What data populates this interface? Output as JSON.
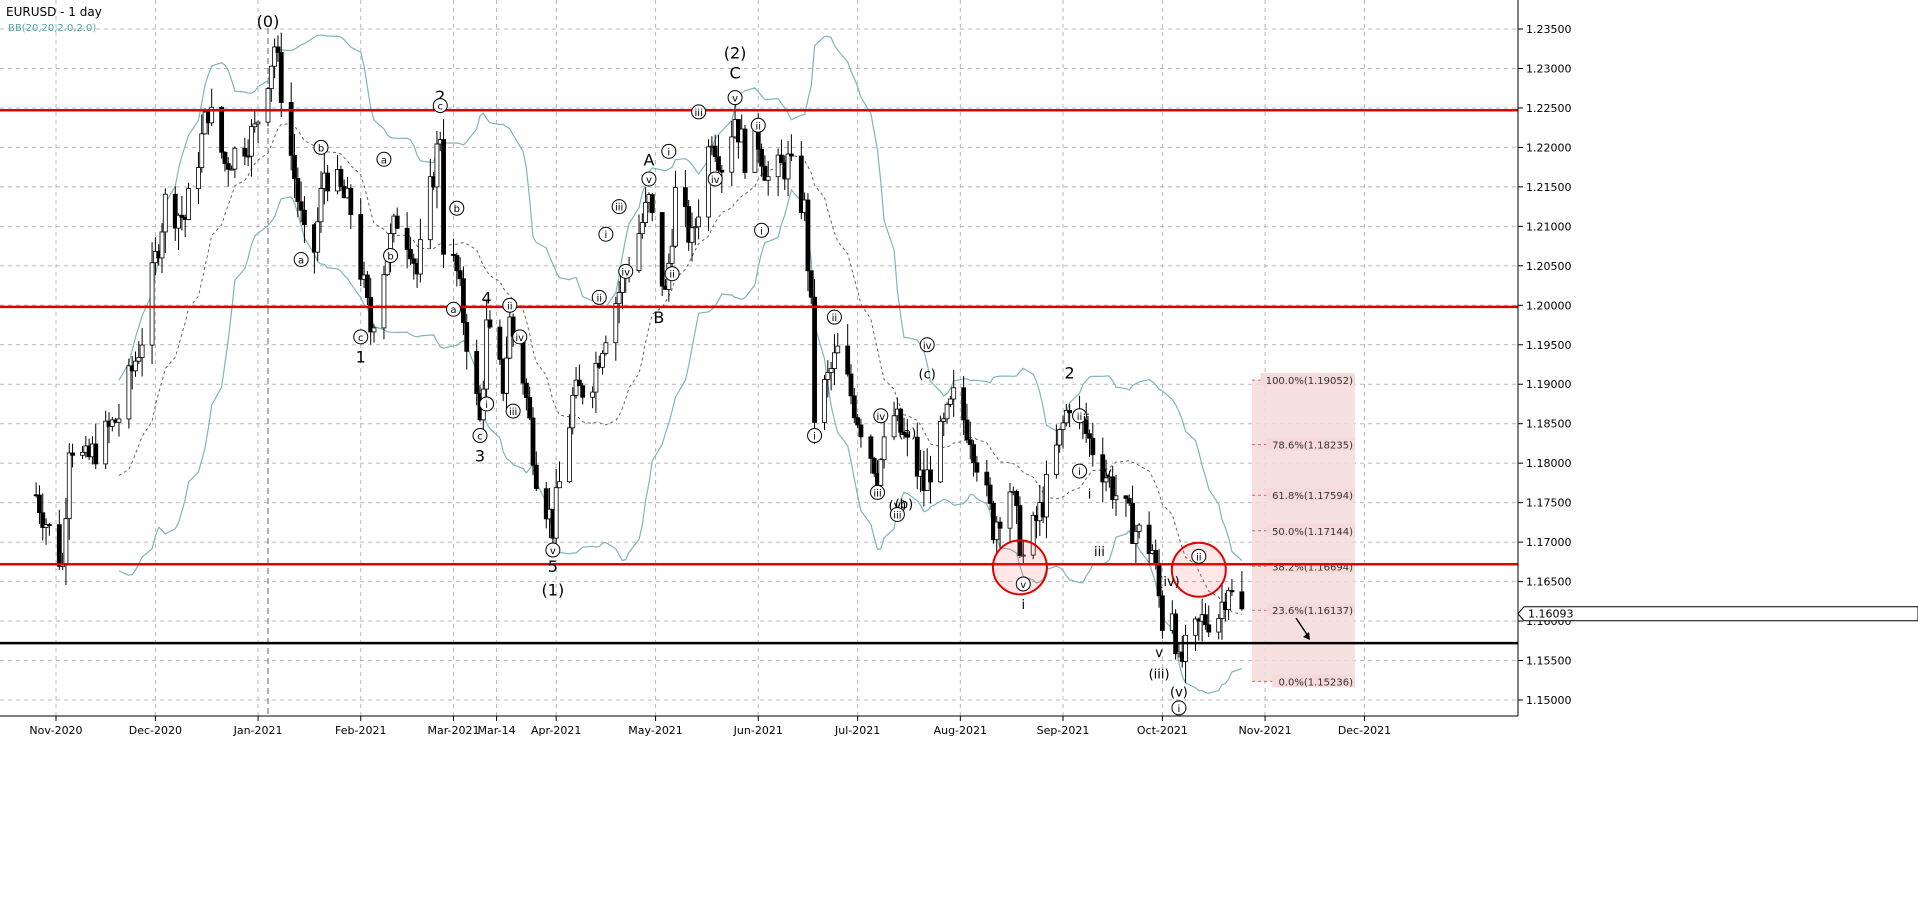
{
  "chart_data": {
    "type": "candlestick",
    "title": "EURUSD - 1 day",
    "indicator": "BB(20,20,2.0,2.0)",
    "current_price": "1.16093",
    "ylim": [
      1.1475,
      1.2385
    ],
    "y_ticks": [
      "1.15000",
      "1.15500",
      "1.16000",
      "1.16500",
      "1.17000",
      "1.17500",
      "1.18000",
      "1.18500",
      "1.19000",
      "1.19500",
      "1.20000",
      "1.20500",
      "1.21000",
      "1.21500",
      "1.22000",
      "1.22500",
      "1.23000",
      "1.23500"
    ],
    "x_ticks": [
      "Nov-2020",
      "Dec-2020",
      "Jan-2021",
      "Feb-2021",
      "Mar-2021",
      "Mar-14",
      "Apr-2021",
      "May-2021",
      "Jun-2021",
      "Jul-2021",
      "Aug-2021",
      "Sep-2021",
      "Oct-2021",
      "Nov-2021",
      "Dec-2021"
    ],
    "grid": true,
    "horizontal_levels": [
      {
        "price": 1.2247,
        "color": "#e00000"
      },
      {
        "price": 1.1998,
        "color": "#e00000"
      },
      {
        "price": 1.1672,
        "color": "#e00000"
      },
      {
        "price": 1.1572,
        "color": "#000000"
      }
    ],
    "fibonacci": [
      {
        "label": "100.0%(1.19052)",
        "price": 1.19052
      },
      {
        "label": "78.6%(1.18235)",
        "price": 1.18235
      },
      {
        "label": "61.8%(1.17594)",
        "price": 1.17594
      },
      {
        "label": "50.0%(1.17144)",
        "price": 1.17144
      },
      {
        "label": "38.2%(1.16694)",
        "price": 1.16694
      },
      {
        "label": "23.6%(1.16137)",
        "price": 1.16137
      },
      {
        "label": "0.0%(1.15236)",
        "price": 1.15236
      }
    ],
    "wave_labels": [
      {
        "text": "(0)",
        "date": "2021-01-04",
        "price": 1.236,
        "style": "plain"
      },
      {
        "text": "2",
        "date": "2021-02-25",
        "price": 1.2265,
        "style": "plain"
      },
      {
        "text": "c",
        "date": "2021-02-25",
        "price": 1.2253,
        "style": "circle"
      },
      {
        "text": "b",
        "date": "2021-01-20",
        "price": 1.22,
        "style": "circle"
      },
      {
        "text": "a",
        "date": "2021-01-14",
        "price": 1.2058,
        "style": "circle"
      },
      {
        "text": "a",
        "date": "2021-02-08",
        "price": 1.2185,
        "style": "circle"
      },
      {
        "text": "b",
        "date": "2021-02-10",
        "price": 1.2063,
        "style": "circle"
      },
      {
        "text": "c",
        "date": "2021-02-01",
        "price": 1.196,
        "style": "circle"
      },
      {
        "text": "1",
        "date": "2021-02-01",
        "price": 1.1935,
        "style": "plain"
      },
      {
        "text": "b",
        "date": "2021-03-02",
        "price": 1.2123,
        "style": "circle"
      },
      {
        "text": "a",
        "date": "2021-03-01",
        "price": 1.1995,
        "style": "circle"
      },
      {
        "text": "c",
        "date": "2021-03-09",
        "price": 1.1835,
        "style": "circle"
      },
      {
        "text": "3",
        "date": "2021-03-09",
        "price": 1.181,
        "style": "plain"
      },
      {
        "text": "4",
        "date": "2021-03-11",
        "price": 1.201,
        "style": "plain"
      },
      {
        "text": "ii",
        "date": "2021-03-18",
        "price": 1.2,
        "style": "circle"
      },
      {
        "text": "iv",
        "date": "2021-03-21",
        "price": 1.196,
        "style": "circle"
      },
      {
        "text": "i",
        "date": "2021-03-11",
        "price": 1.1875,
        "style": "circle"
      },
      {
        "text": "iii",
        "date": "2021-03-19",
        "price": 1.1866,
        "style": "circle"
      },
      {
        "text": "v",
        "date": "2021-03-31",
        "price": 1.169,
        "style": "circle"
      },
      {
        "text": "5",
        "date": "2021-03-31",
        "price": 1.167,
        "style": "plain"
      },
      {
        "text": "(1)",
        "date": "2021-03-31",
        "price": 1.164,
        "style": "plain"
      },
      {
        "text": "A",
        "date": "2021-04-29",
        "price": 1.2185,
        "style": "plain"
      },
      {
        "text": "v",
        "date": "2021-04-29",
        "price": 1.216,
        "style": "circle"
      },
      {
        "text": "iii",
        "date": "2021-04-20",
        "price": 1.2125,
        "style": "circle"
      },
      {
        "text": "i",
        "date": "2021-04-16",
        "price": 1.209,
        "style": "circle"
      },
      {
        "text": "iv",
        "date": "2021-04-22",
        "price": 1.2043,
        "style": "circle"
      },
      {
        "text": "ii",
        "date": "2021-04-14",
        "price": 1.201,
        "style": "circle"
      },
      {
        "text": "B",
        "date": "2021-05-02",
        "price": 1.1985,
        "style": "plain"
      },
      {
        "text": "i",
        "date": "2021-05-05",
        "price": 1.2195,
        "style": "circle"
      },
      {
        "text": "ii",
        "date": "2021-05-06",
        "price": 1.204,
        "style": "circle"
      },
      {
        "text": "iii",
        "date": "2021-05-14",
        "price": 1.2245,
        "style": "circle"
      },
      {
        "text": "iv",
        "date": "2021-05-19",
        "price": 1.216,
        "style": "circle"
      },
      {
        "text": "(2)",
        "date": "2021-05-25",
        "price": 1.232,
        "style": "plain"
      },
      {
        "text": "C",
        "date": "2021-05-25",
        "price": 1.2295,
        "style": "plain"
      },
      {
        "text": "v",
        "date": "2021-05-25",
        "price": 1.2263,
        "style": "circle"
      },
      {
        "text": "ii",
        "date": "2021-06-01",
        "price": 1.2228,
        "style": "circle"
      },
      {
        "text": "i",
        "date": "2021-06-02",
        "price": 1.2095,
        "style": "circle"
      },
      {
        "text": "ii",
        "date": "2021-06-24",
        "price": 1.1985,
        "style": "circle"
      },
      {
        "text": "i",
        "date": "2021-06-18",
        "price": 1.1835,
        "style": "circle"
      },
      {
        "text": "iv",
        "date": "2021-07-22",
        "price": 1.195,
        "style": "circle"
      },
      {
        "text": "iv",
        "date": "2021-07-08",
        "price": 1.186,
        "style": "circle"
      },
      {
        "text": "(c)",
        "date": "2021-07-22",
        "price": 1.1915,
        "style": "plain"
      },
      {
        "text": "(a)",
        "date": "2021-07-16",
        "price": 1.184,
        "style": "plain"
      },
      {
        "text": "iii",
        "date": "2021-07-07",
        "price": 1.1763,
        "style": "circle"
      },
      {
        "text": "(v)",
        "date": "2021-07-13",
        "price": 1.1748,
        "style": "plain"
      },
      {
        "text": "(b)",
        "date": "2021-07-15",
        "price": 1.175,
        "style": "plain"
      },
      {
        "text": "iii",
        "date": "2021-07-13",
        "price": 1.1735,
        "style": "circle"
      },
      {
        "text": "v",
        "date": "2021-08-20",
        "price": 1.1647,
        "style": "circle"
      },
      {
        "text": "i",
        "date": "2021-08-20",
        "price": 1.1623,
        "style": "plain"
      },
      {
        "text": "2",
        "date": "2021-09-03",
        "price": 1.1915,
        "style": "plain"
      },
      {
        "text": "ii",
        "date": "2021-09-06",
        "price": 1.186,
        "style": "circle"
      },
      {
        "text": "ii",
        "date": "2021-09-08",
        "price": 1.1858,
        "style": "plain"
      },
      {
        "text": "i",
        "date": "2021-09-06",
        "price": 1.179,
        "style": "circle"
      },
      {
        "text": "i",
        "date": "2021-09-09",
        "price": 1.1763,
        "style": "plain"
      },
      {
        "text": "iv",
        "date": "2021-09-14",
        "price": 1.179,
        "style": "plain"
      },
      {
        "text": "iii",
        "date": "2021-09-12",
        "price": 1.169,
        "style": "plain"
      },
      {
        "text": "(iv)",
        "date": "2021-10-03",
        "price": 1.1652,
        "style": "plain"
      },
      {
        "text": "v",
        "date": "2021-09-30",
        "price": 1.1562,
        "style": "plain"
      },
      {
        "text": "(iii)",
        "date": "2021-09-30",
        "price": 1.1535,
        "style": "plain"
      },
      {
        "text": "(v)",
        "date": "2021-10-06",
        "price": 1.1512,
        "style": "plain"
      },
      {
        "text": "i",
        "date": "2021-10-06",
        "price": 1.149,
        "style": "circle"
      },
      {
        "text": "ii",
        "date": "2021-10-12",
        "price": 1.1682,
        "style": "circle"
      }
    ],
    "resistance_circles": [
      {
        "date": "2021-08-19",
        "price": 1.1668
      },
      {
        "date": "2021-10-12",
        "price": 1.1665
      }
    ]
  }
}
